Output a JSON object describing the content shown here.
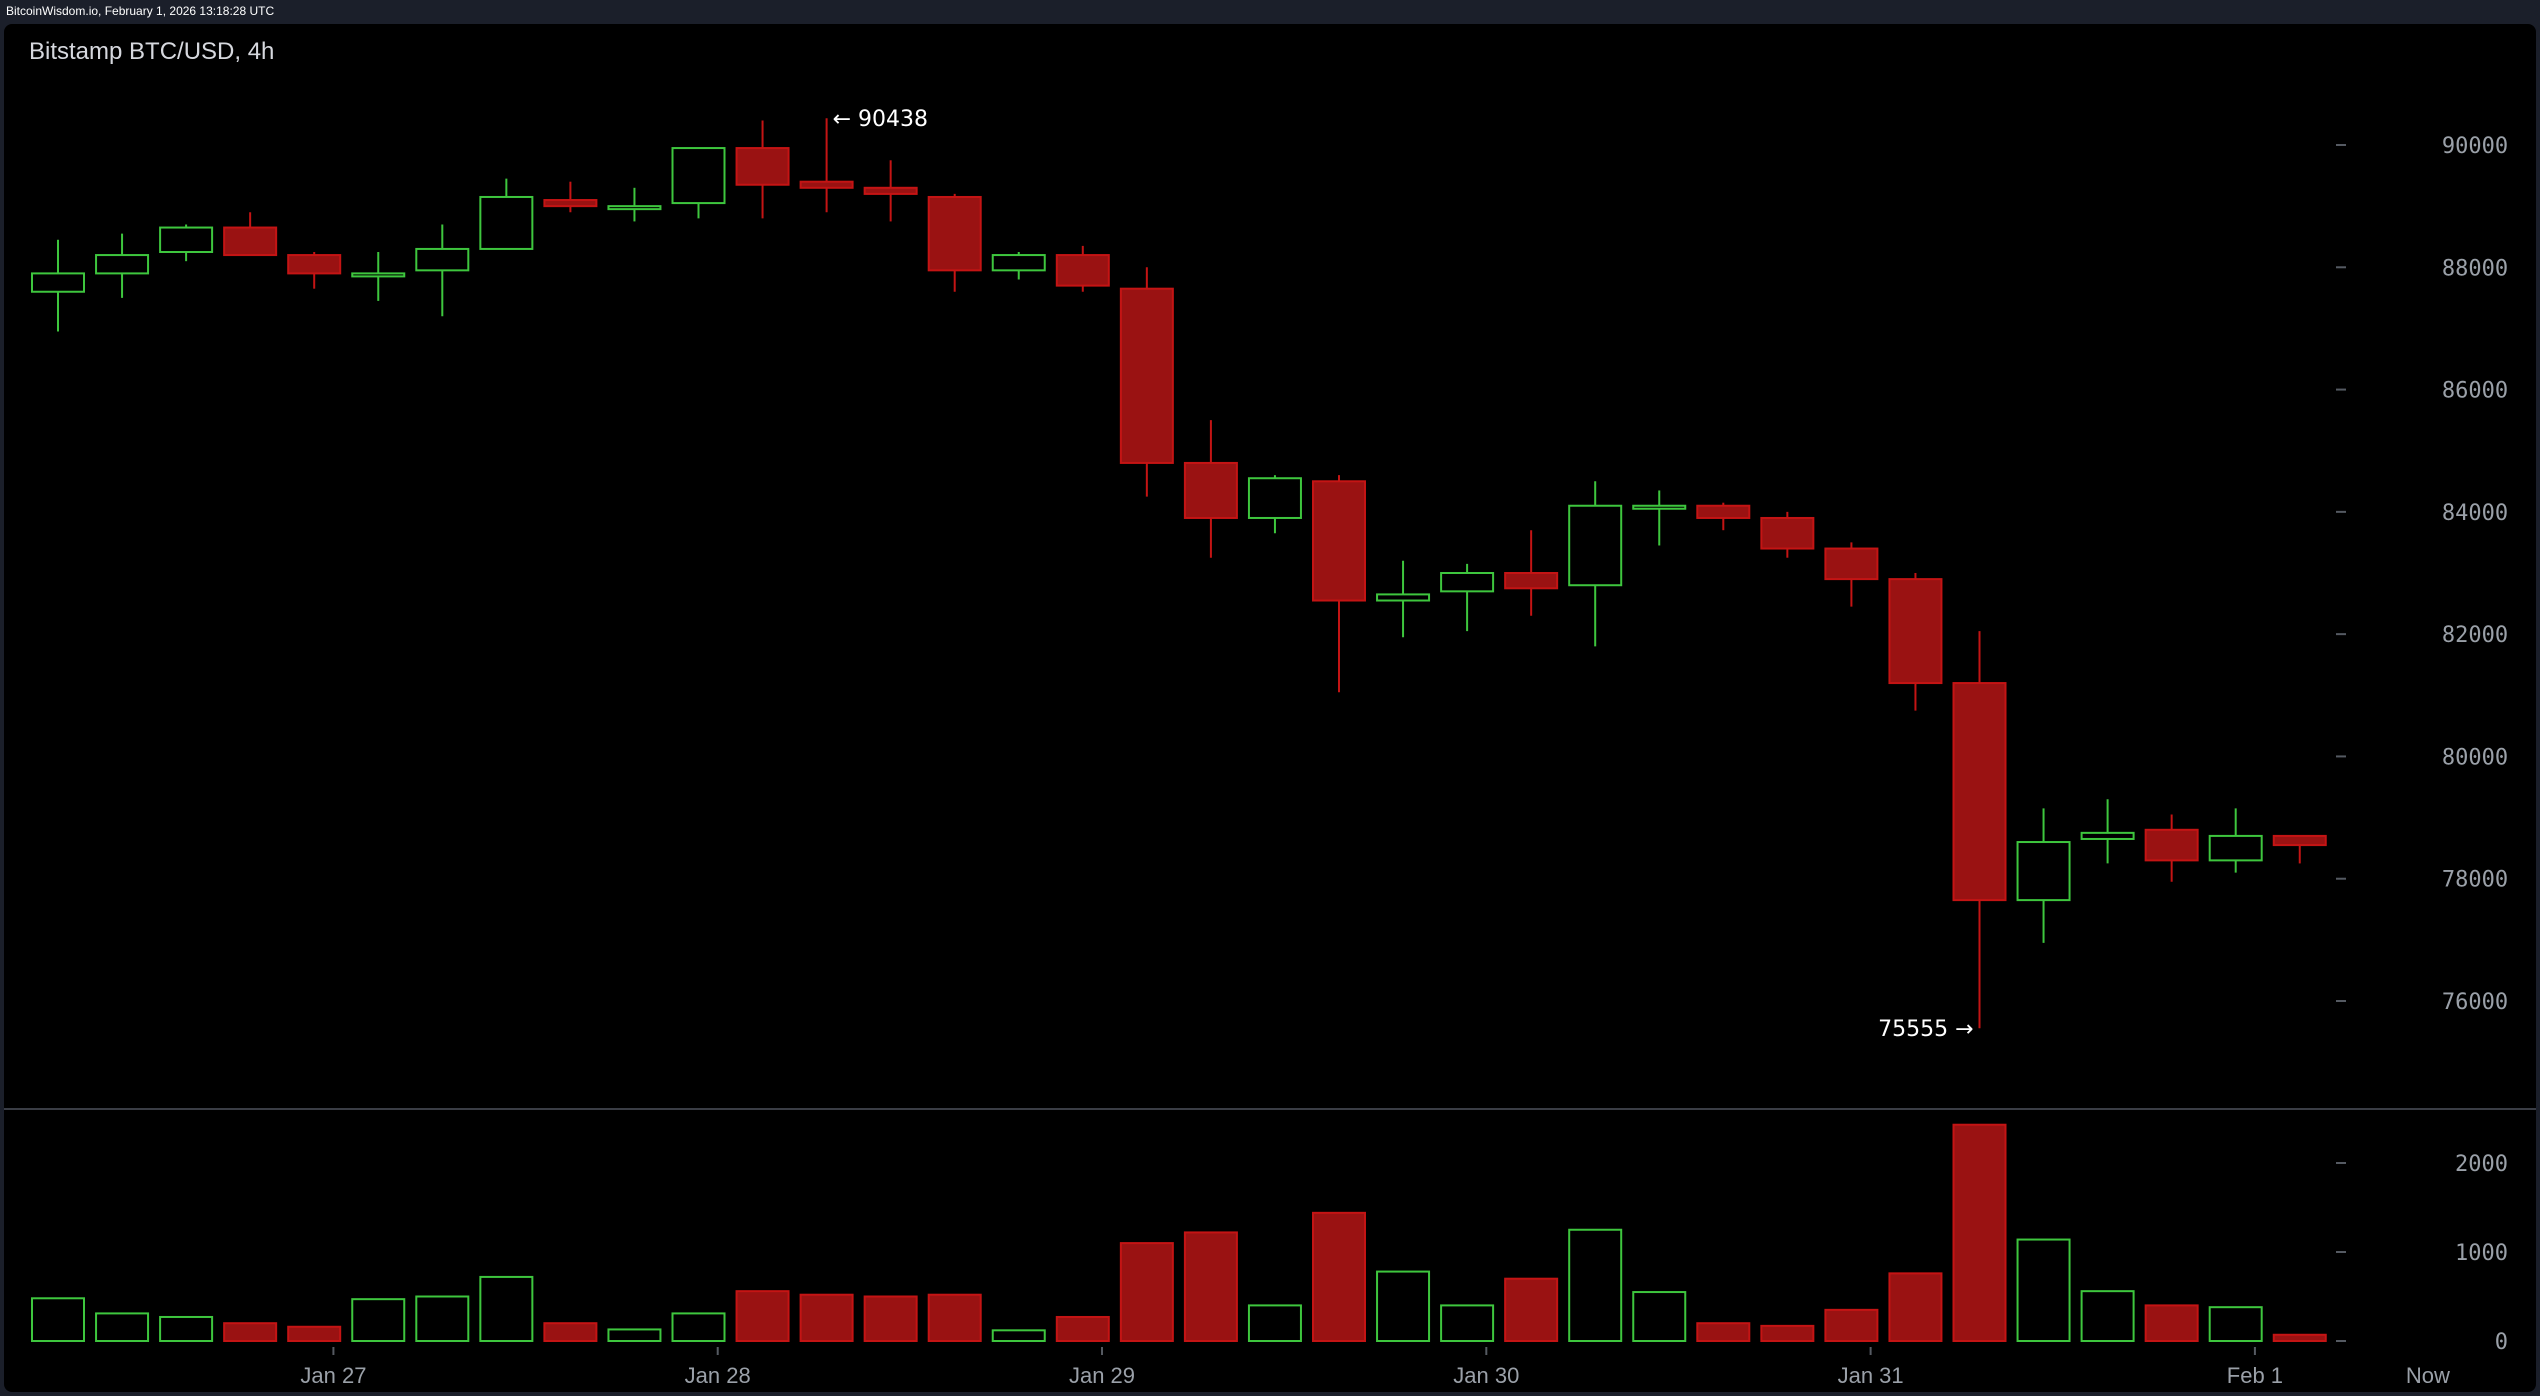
{
  "header": {
    "source_line": "BitcoinWisdom.io, February 1, 2026 13:18:28 UTC",
    "chart_title": "Bitstamp BTC/USD, 4h"
  },
  "chart_data": {
    "type": "candlestick",
    "title": "Bitstamp BTC/USD, 4h",
    "interval": "4h",
    "colors": {
      "up": "#3ec63e",
      "down": "#c41414",
      "down_fill": "#9a1212",
      "axis_text": "#9aa0a8",
      "annotation": "#ffffff"
    },
    "price_axis": {
      "ylim": [
        74500,
        92000
      ],
      "ticks": [
        76000,
        78000,
        80000,
        82000,
        84000,
        86000,
        88000,
        90000
      ],
      "position": "right"
    },
    "volume_axis": {
      "ylim": [
        0,
        2500
      ],
      "ticks": [
        0,
        1000,
        2000
      ],
      "position": "right"
    },
    "x_axis": {
      "labels": [
        {
          "text": "Jan 27",
          "candle": 4.3
        },
        {
          "text": "Jan 28",
          "candle": 10.3
        },
        {
          "text": "Jan 29",
          "candle": 16.3
        },
        {
          "text": "Jan 30",
          "candle": 22.3
        },
        {
          "text": "Jan 31",
          "candle": 28.3
        },
        {
          "text": "Feb 1",
          "candle": 34.3
        },
        {
          "text": "Now",
          "candle": 37.0
        }
      ]
    },
    "candles": [
      {
        "o": 87600,
        "h": 88450,
        "l": 86950,
        "c": 87900,
        "v": 480
      },
      {
        "o": 87900,
        "h": 88550,
        "l": 87500,
        "c": 88200,
        "v": 310
      },
      {
        "o": 88250,
        "h": 88700,
        "l": 88100,
        "c": 88650,
        "v": 270
      },
      {
        "o": 88650,
        "h": 88900,
        "l": 88200,
        "c": 88200,
        "v": 200
      },
      {
        "o": 88200,
        "h": 88250,
        "l": 87650,
        "c": 87900,
        "v": 160
      },
      {
        "o": 87900,
        "h": 88250,
        "l": 87450,
        "c": 87900,
        "v": 470
      },
      {
        "o": 87950,
        "h": 88700,
        "l": 87200,
        "c": 88300,
        "v": 500
      },
      {
        "o": 88300,
        "h": 89450,
        "l": 88300,
        "c": 89150,
        "v": 720
      },
      {
        "o": 89100,
        "h": 89400,
        "l": 88900,
        "c": 89000,
        "v": 200
      },
      {
        "o": 89000,
        "h": 89300,
        "l": 88750,
        "c": 89000,
        "v": 130
      },
      {
        "o": 89050,
        "h": 89950,
        "l": 88800,
        "c": 89950,
        "v": 310
      },
      {
        "o": 89950,
        "h": 90400,
        "l": 88800,
        "c": 89350,
        "v": 560
      },
      {
        "o": 89400,
        "h": 90438,
        "l": 88900,
        "c": 89300,
        "v": 520
      },
      {
        "o": 89300,
        "h": 89750,
        "l": 88750,
        "c": 89200,
        "v": 500
      },
      {
        "o": 89150,
        "h": 89200,
        "l": 87600,
        "c": 87950,
        "v": 520
      },
      {
        "o": 87950,
        "h": 88250,
        "l": 87800,
        "c": 88200,
        "v": 120
      },
      {
        "o": 88200,
        "h": 88350,
        "l": 87600,
        "c": 87700,
        "v": 270
      },
      {
        "o": 87650,
        "h": 88000,
        "l": 84250,
        "c": 84800,
        "v": 1100
      },
      {
        "o": 84800,
        "h": 85500,
        "l": 83250,
        "c": 83900,
        "v": 1220
      },
      {
        "o": 83900,
        "h": 84600,
        "l": 83650,
        "c": 84550,
        "v": 400
      },
      {
        "o": 84500,
        "h": 84600,
        "l": 81050,
        "c": 82550,
        "v": 1440
      },
      {
        "o": 82550,
        "h": 83200,
        "l": 81950,
        "c": 82650,
        "v": 780
      },
      {
        "o": 82700,
        "h": 83150,
        "l": 82050,
        "c": 83000,
        "v": 400
      },
      {
        "o": 83000,
        "h": 83700,
        "l": 82300,
        "c": 82750,
        "v": 700
      },
      {
        "o": 82800,
        "h": 84500,
        "l": 81800,
        "c": 84100,
        "v": 1250
      },
      {
        "o": 84100,
        "h": 84350,
        "l": 83450,
        "c": 84100,
        "v": 550
      },
      {
        "o": 84100,
        "h": 84150,
        "l": 83700,
        "c": 83900,
        "v": 200
      },
      {
        "o": 83900,
        "h": 84000,
        "l": 83250,
        "c": 83400,
        "v": 170
      },
      {
        "o": 83400,
        "h": 83500,
        "l": 82450,
        "c": 82900,
        "v": 350
      },
      {
        "o": 82900,
        "h": 83000,
        "l": 80750,
        "c": 81200,
        "v": 760
      },
      {
        "o": 81200,
        "h": 82050,
        "l": 75555,
        "c": 77650,
        "v": 2430
      },
      {
        "o": 77650,
        "h": 79150,
        "l": 76950,
        "c": 78600,
        "v": 1140
      },
      {
        "o": 78650,
        "h": 79300,
        "l": 78250,
        "c": 78750,
        "v": 560
      },
      {
        "o": 78800,
        "h": 79050,
        "l": 77950,
        "c": 78300,
        "v": 400
      },
      {
        "o": 78300,
        "h": 79150,
        "l": 78100,
        "c": 78700,
        "v": 380
      },
      {
        "o": 78700,
        "h": 78700,
        "l": 78250,
        "c": 78550,
        "v": 70
      }
    ],
    "annotations": [
      {
        "text": "← 90438",
        "value": 90438,
        "candle": 12,
        "side": "right"
      },
      {
        "text": "75555 →",
        "value": 75555,
        "candle": 30,
        "side": "left"
      }
    ]
  }
}
